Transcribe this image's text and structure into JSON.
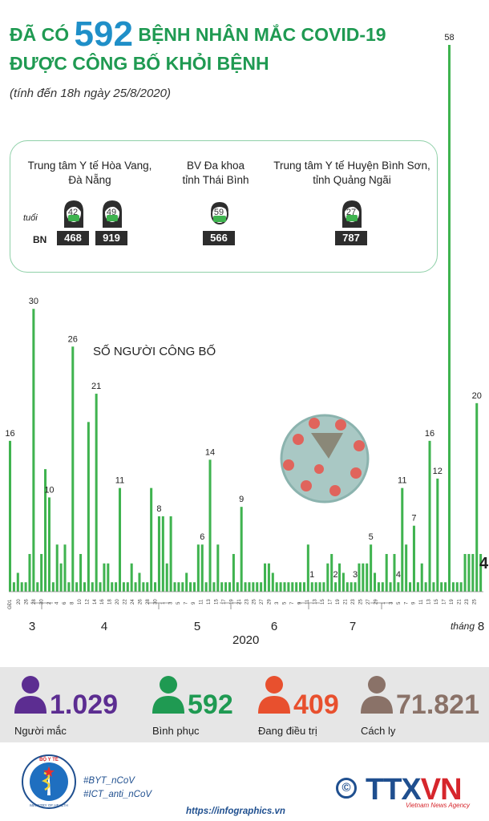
{
  "title": {
    "prefix": "ĐÃ CÓ",
    "number": "592",
    "suffix": "BỆNH NHÂN MẮC COVID-19",
    "line2": "ĐƯỢC CÔNG BỐ KHỎI BỆNH"
  },
  "subtitle": "(tính đến 18h ngày 25/8/2020)",
  "patients": {
    "age_label": "tuổi",
    "bn_label": "BN",
    "groups": [
      {
        "place_line1": "Trung tâm Y tế Hòa Vang,",
        "place_line2": "Đà Nẵng",
        "people": [
          {
            "age": "42",
            "id": "468",
            "gender": "female"
          },
          {
            "age": "49",
            "id": "919",
            "gender": "female"
          }
        ]
      },
      {
        "place_line1": "BV Đa khoa",
        "place_line2": "tỉnh Thái Bình",
        "people": [
          {
            "age": "59",
            "id": "566",
            "gender": "male"
          }
        ]
      },
      {
        "place_line1": "Trung tâm Y tế Huyện Bình Sơn,",
        "place_line2": "tỉnh Quảng Ngãi",
        "people": [
          {
            "age": "27",
            "id": "787",
            "gender": "female"
          }
        ]
      }
    ]
  },
  "chart_caption": "SỐ NGƯỜI CÔNG BỐ",
  "chart_data": {
    "type": "bar",
    "title": "SỐ NGƯỜI CÔNG BỐ",
    "color": "#3fb34f",
    "first_tick": "GĐ1",
    "values": [
      16,
      1,
      2,
      1,
      1,
      4,
      30,
      1,
      4,
      13,
      10,
      1,
      5,
      3,
      5,
      1,
      26,
      1,
      4,
      1,
      18,
      1,
      21,
      1,
      3,
      3,
      1,
      1,
      11,
      1,
      1,
      3,
      1,
      2,
      1,
      1,
      11,
      1,
      8,
      8,
      3,
      8,
      1,
      1,
      1,
      2,
      1,
      1,
      5,
      5,
      1,
      14,
      1,
      5,
      1,
      1,
      1,
      4,
      1,
      9,
      1,
      1,
      1,
      1,
      1,
      3,
      3,
      2,
      1,
      1,
      1,
      1,
      1,
      1,
      1,
      1,
      5,
      1,
      1,
      1,
      1,
      3,
      4,
      1,
      3,
      2,
      1,
      1,
      1,
      3,
      3,
      3,
      5,
      2,
      1,
      1,
      4,
      1,
      4,
      1,
      11,
      5,
      1,
      7,
      1,
      3,
      1,
      16,
      1,
      12,
      1,
      1,
      58,
      1,
      1,
      1,
      4,
      4,
      4,
      20,
      4
    ],
    "labeled_values": [
      "16",
      "30",
      "10",
      "26",
      "21",
      "11",
      "8",
      "6",
      "14",
      "9",
      "1",
      "2",
      "3",
      "5",
      "4",
      "11",
      "7",
      "16",
      "12",
      "58",
      "20",
      "4"
    ],
    "x_ticks": [
      "20",
      "26",
      "28",
      "30",
      "2",
      "4",
      "6",
      "8",
      "10",
      "12",
      "14",
      "16",
      "18",
      "20",
      "22",
      "24",
      "26",
      "28",
      "30",
      "1",
      "3",
      "5",
      "7",
      "9",
      "11",
      "13",
      "15",
      "17",
      "19",
      "21",
      "23",
      "25",
      "27",
      "29",
      "3",
      "5",
      "7",
      "9",
      "11",
      "13",
      "15",
      "17",
      "19",
      "21",
      "23",
      "25",
      "27",
      "29",
      "1",
      "3",
      "5",
      "7",
      "9",
      "11",
      "13",
      "15",
      "17",
      "19",
      "21",
      "23",
      "25"
    ],
    "months": [
      "3",
      "4",
      "5",
      "6",
      "7",
      "8"
    ],
    "month_prefix": "tháng",
    "year": "2020"
  },
  "stats": [
    {
      "value": "1.029",
      "label": "Người mắc",
      "color": "#5c2d91"
    },
    {
      "value": "592",
      "label": "Bình phục",
      "color": "#1f9a52"
    },
    {
      "value": "409",
      "label": "Đang điều trị",
      "color": "#e8502e"
    },
    {
      "value": "71.821",
      "label": "Cách ly",
      "color": "#8a7268"
    }
  ],
  "footer": {
    "hashtag1": "#BYT_nCoV",
    "hashtag2": "#ICT_anti_nCoV",
    "website": "https://infographics.vn",
    "logo_top": "BỘ Y TẾ",
    "logo_bottom": "MINISTRY OF HEALTH",
    "copyright_symbol": "©",
    "ttx": "TTX",
    "vn": "VN",
    "agency": "Vietnam News Agency"
  }
}
